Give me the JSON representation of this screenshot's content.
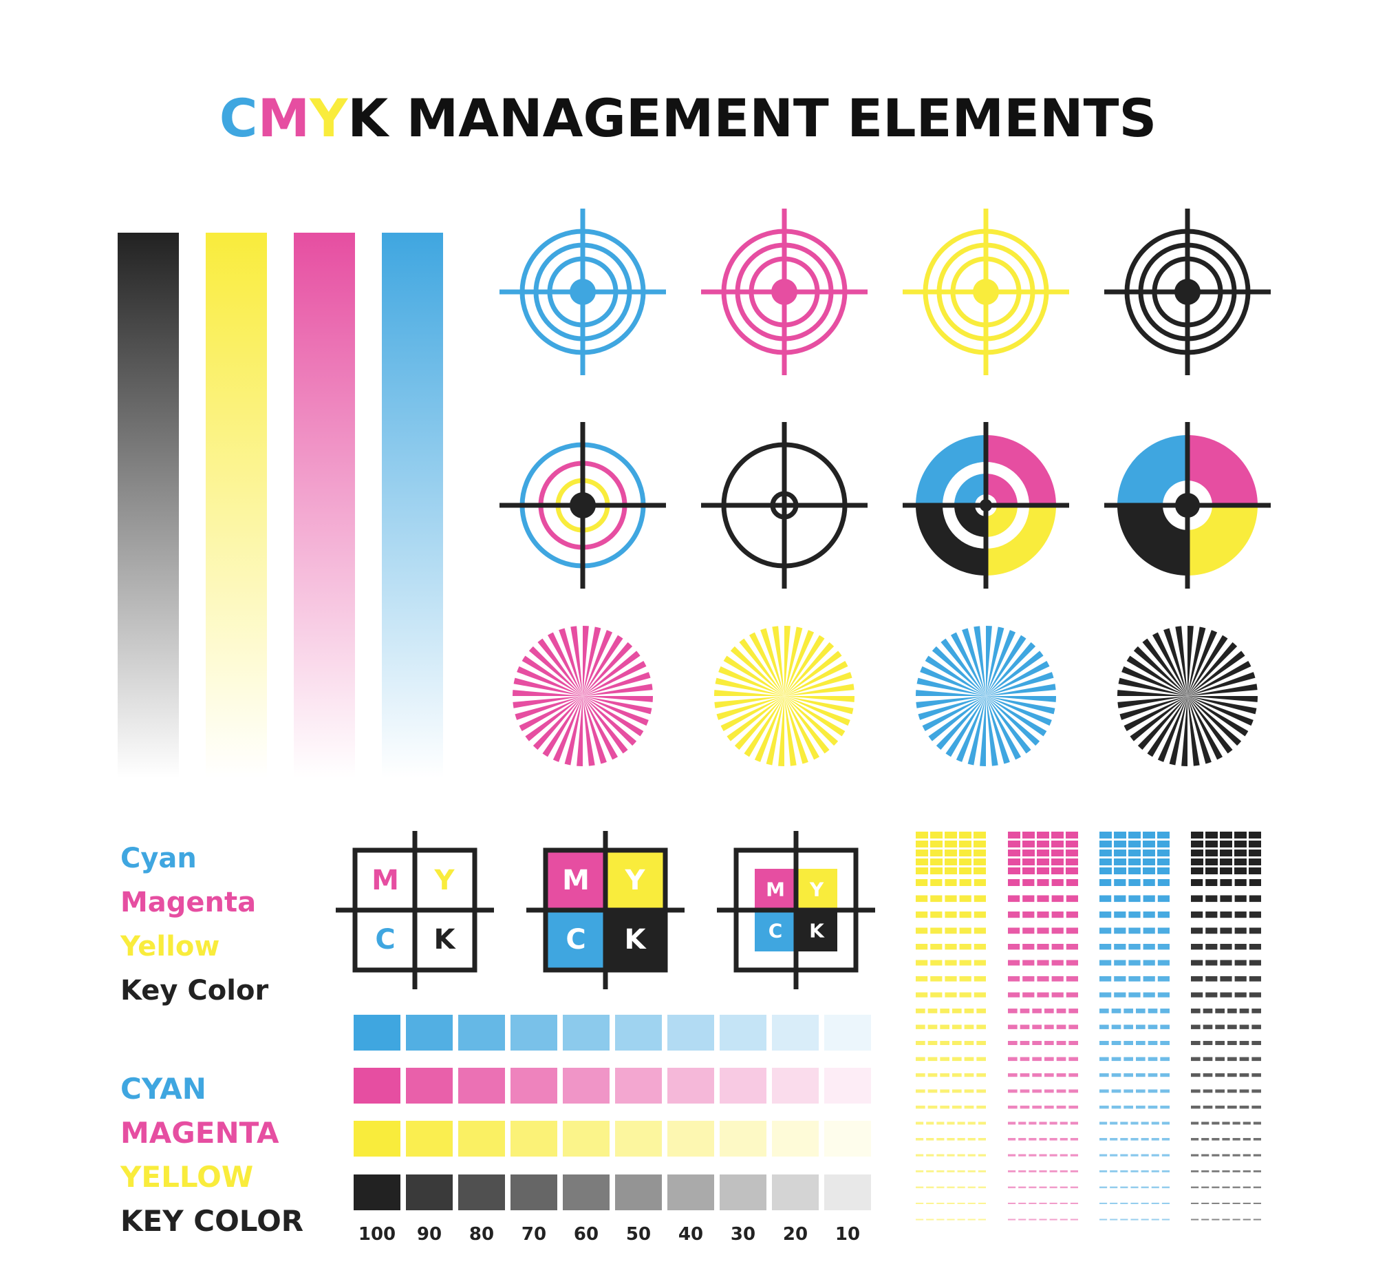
{
  "title": {
    "letters": [
      {
        "text": "C",
        "color": "#3fa6e0"
      },
      {
        "text": "M",
        "color": "#e64ea1"
      },
      {
        "text": "Y",
        "color": "#f9ec3c"
      },
      {
        "text": "K MANAGEMENT ELEMENTS",
        "color": "#111111"
      }
    ]
  },
  "colors": {
    "cyan": "#3fa6e0",
    "magenta": "#e64ea1",
    "yellow": "#f9ec3c",
    "key": "#222222"
  },
  "gradient_bars": [
    "key",
    "yellow",
    "magenta",
    "cyan"
  ],
  "target_row_colors": [
    "cyan",
    "magenta",
    "yellow",
    "key"
  ],
  "starburst_colors": [
    "magenta",
    "yellow",
    "cyan",
    "key"
  ],
  "legend_lower": [
    {
      "text": "Cyan",
      "color": "cyan"
    },
    {
      "text": "Magenta",
      "color": "magenta"
    },
    {
      "text": "Yellow",
      "color": "yellow"
    },
    {
      "text": "Key Color",
      "color": "key"
    }
  ],
  "legend_upper": [
    {
      "text": "CYAN",
      "color": "cyan"
    },
    {
      "text": "MAGENTA",
      "color": "magenta"
    },
    {
      "text": "YELLOW",
      "color": "yellow"
    },
    {
      "text": "KEY COLOR",
      "color": "key"
    }
  ],
  "registration_letters": [
    "M",
    "Y",
    "C",
    "K"
  ],
  "tint_rows": [
    "cyan",
    "magenta",
    "yellow",
    "key"
  ],
  "tint_percentages": [
    "100",
    "90",
    "80",
    "70",
    "60",
    "50",
    "40",
    "30",
    "20",
    "10"
  ],
  "tint_percent_values": [
    100,
    90,
    80,
    70,
    60,
    50,
    40,
    30,
    20,
    10
  ],
  "dash_columns": [
    "yellow",
    "magenta",
    "cyan",
    "key"
  ]
}
